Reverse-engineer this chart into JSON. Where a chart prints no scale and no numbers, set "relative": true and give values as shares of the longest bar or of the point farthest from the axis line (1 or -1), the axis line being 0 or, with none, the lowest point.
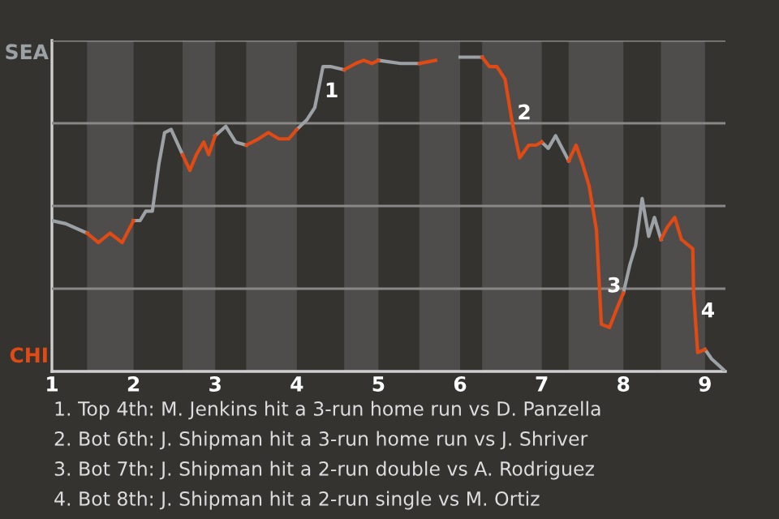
{
  "chart_data": {
    "type": "line",
    "relative": true,
    "x": [
      1.0,
      1.17,
      1.43,
      1.57,
      1.71,
      1.86,
      2.0,
      2.08,
      2.15,
      2.23,
      2.31,
      2.38,
      2.46,
      2.6,
      2.69,
      2.77,
      2.86,
      2.92,
      3.0,
      3.13,
      3.25,
      3.38,
      3.53,
      3.65,
      3.78,
      3.9,
      4.0,
      4.12,
      4.22,
      4.32,
      4.42,
      4.58,
      4.72,
      4.82,
      4.92,
      5.0,
      5.27,
      5.5,
      5.7,
      6.0,
      6.27,
      6.36,
      6.45,
      6.55,
      6.64,
      6.73,
      6.84,
      6.93,
      7.0,
      7.08,
      7.17,
      7.25,
      7.33,
      7.42,
      7.5,
      7.58,
      7.67,
      7.73,
      7.83,
      7.92,
      8.0,
      8.08,
      8.15,
      8.23,
      8.31,
      8.38,
      8.46,
      8.54,
      8.63,
      8.71,
      8.85,
      8.86,
      8.91,
      9.0,
      9.08,
      9.25
    ],
    "series": [
      {
        "name": "SEA",
        "color": "#9ba1a4",
        "values": [
          0.48,
          0.47,
          0.44,
          null,
          null,
          null,
          0.48,
          0.48,
          0.51,
          0.51,
          0.66,
          0.76,
          0.77,
          0.69,
          null,
          null,
          null,
          null,
          0.75,
          0.78,
          0.73,
          0.72,
          null,
          null,
          null,
          null,
          0.77,
          0.8,
          0.84,
          0.97,
          0.97,
          0.96,
          null,
          null,
          null,
          0.99,
          0.98,
          0.98,
          null,
          1,
          1,
          null,
          null,
          null,
          null,
          null,
          null,
          null,
          0.73,
          0.71,
          0.75,
          0.71,
          0.67,
          null,
          null,
          null,
          null,
          null,
          null,
          null,
          0.25,
          0.34,
          0.4,
          0.55,
          0.43,
          0.49,
          0.42,
          null,
          null,
          null,
          null,
          null,
          null,
          0.07,
          0.04,
          0
        ]
      },
      {
        "name": "CHI",
        "color": "#e04a14",
        "values": [
          null,
          null,
          0.44,
          0.41,
          0.44,
          0.41,
          0.48,
          null,
          null,
          null,
          null,
          null,
          null,
          0.69,
          0.64,
          0.69,
          0.73,
          0.69,
          0.75,
          null,
          null,
          0.72,
          0.74,
          0.76,
          0.74,
          0.74,
          0.77,
          null,
          null,
          null,
          null,
          0.96,
          0.98,
          0.99,
          0.98,
          0.99,
          null,
          0.98,
          0.99,
          null,
          1,
          0.97,
          0.97,
          0.93,
          0.79,
          0.68,
          0.72,
          0.72,
          0.73,
          null,
          null,
          null,
          0.67,
          0.72,
          0.66,
          0.59,
          0.45,
          0.15,
          0.14,
          0.2,
          0.25,
          null,
          null,
          null,
          null,
          null,
          0.42,
          0.46,
          0.49,
          0.42,
          0.39,
          0.25,
          0.06,
          0.07,
          null,
          null
        ]
      }
    ],
    "xlim": [
      1,
      9.25
    ],
    "xticks": [
      1,
      2,
      3,
      4,
      5,
      6,
      7,
      8,
      9
    ],
    "grid": "y",
    "bands": [
      {
        "axis": "x",
        "from": 1.43,
        "to": 2.0,
        "color": "#4f4d4b"
      },
      {
        "axis": "x",
        "from": 2.6,
        "to": 3.0,
        "color": "#4f4d4b"
      },
      {
        "axis": "x",
        "from": 3.38,
        "to": 4.0,
        "color": "#4f4d4b"
      },
      {
        "axis": "x",
        "from": 4.58,
        "to": 5.0,
        "color": "#4f4d4b"
      },
      {
        "axis": "x",
        "from": 5.5,
        "to": 6.0,
        "color": "#4f4d4b"
      },
      {
        "axis": "x",
        "from": 6.27,
        "to": 7.0,
        "color": "#4f4d4b"
      },
      {
        "axis": "x",
        "from": 7.33,
        "to": 8.0,
        "color": "#4f4d4b"
      },
      {
        "axis": "x",
        "from": 8.46,
        "to": 9.0,
        "color": "#4f4d4b"
      }
    ],
    "annotations": [
      {
        "text": "1",
        "x": 4.26,
        "y": 0.89
      },
      {
        "text": "2",
        "x": 6.62,
        "y": 0.82
      },
      {
        "text": "3",
        "x": 7.72,
        "y": 0.27
      },
      {
        "text": "4",
        "x": 8.87,
        "y": 0.19
      },
      "1. Top 4th: M. Jenkins hit a 3-run home run vs D. Panzella",
      "2. Bot 6th: J. Shipman hit a 3-run home run vs J. Shriver",
      "3. Bot 7th: J. Shipman hit a 2-run double vs A. Rodriguez",
      "4. Bot 8th: J. Shipman hit a 2-run single vs M. Ortiz"
    ]
  }
}
